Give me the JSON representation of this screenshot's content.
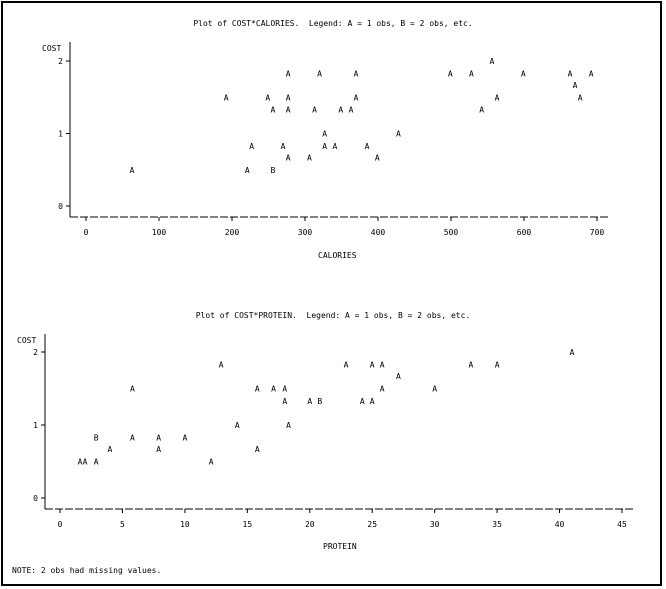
{
  "note": "NOTE: 2 obs had missing values.",
  "chart_data": [
    {
      "type": "scatter",
      "title": "Plot of COST*CALORIES.  Legend: A = 1 obs, B = 2 obs, etc.",
      "xlabel": "CALORIES",
      "ylabel": "COST",
      "xlim": [
        0,
        700
      ],
      "ylim": [
        0,
        2
      ],
      "xticks": [
        0,
        100,
        200,
        300,
        400,
        500,
        600,
        700
      ],
      "yticks": [
        0,
        1,
        2
      ],
      "points": [
        {
          "x": 63,
          "y": 0.5,
          "label": "A"
        },
        {
          "x": 192,
          "y": 1.5,
          "label": "A"
        },
        {
          "x": 221,
          "y": 0.5,
          "label": "A"
        },
        {
          "x": 227,
          "y": 0.83,
          "label": "A"
        },
        {
          "x": 249,
          "y": 1.5,
          "label": "A"
        },
        {
          "x": 256,
          "y": 1.33,
          "label": "A"
        },
        {
          "x": 256,
          "y": 0.5,
          "label": "B"
        },
        {
          "x": 270,
          "y": 0.83,
          "label": "A"
        },
        {
          "x": 277,
          "y": 1.83,
          "label": "A"
        },
        {
          "x": 277,
          "y": 1.5,
          "label": "A"
        },
        {
          "x": 277,
          "y": 1.33,
          "label": "A"
        },
        {
          "x": 277,
          "y": 0.67,
          "label": "A"
        },
        {
          "x": 306,
          "y": 0.67,
          "label": "A"
        },
        {
          "x": 313,
          "y": 1.33,
          "label": "A"
        },
        {
          "x": 320,
          "y": 1.83,
          "label": "A"
        },
        {
          "x": 327,
          "y": 1.0,
          "label": "A"
        },
        {
          "x": 327,
          "y": 0.83,
          "label": "A"
        },
        {
          "x": 341,
          "y": 0.83,
          "label": "A"
        },
        {
          "x": 349,
          "y": 1.33,
          "label": "A"
        },
        {
          "x": 363,
          "y": 1.33,
          "label": "A"
        },
        {
          "x": 370,
          "y": 1.83,
          "label": "A"
        },
        {
          "x": 370,
          "y": 1.5,
          "label": "A"
        },
        {
          "x": 385,
          "y": 0.83,
          "label": "A"
        },
        {
          "x": 399,
          "y": 0.67,
          "label": "A"
        },
        {
          "x": 428,
          "y": 1.0,
          "label": "A"
        },
        {
          "x": 499,
          "y": 1.83,
          "label": "A"
        },
        {
          "x": 528,
          "y": 1.83,
          "label": "A"
        },
        {
          "x": 542,
          "y": 1.33,
          "label": "A"
        },
        {
          "x": 556,
          "y": 2.0,
          "label": "A"
        },
        {
          "x": 563,
          "y": 1.5,
          "label": "A"
        },
        {
          "x": 599,
          "y": 1.83,
          "label": "A"
        },
        {
          "x": 663,
          "y": 1.83,
          "label": "A"
        },
        {
          "x": 670,
          "y": 1.67,
          "label": "A"
        },
        {
          "x": 677,
          "y": 1.5,
          "label": "A"
        },
        {
          "x": 692,
          "y": 1.83,
          "label": "A"
        }
      ]
    },
    {
      "type": "scatter",
      "title": "Plot of COST*PROTEIN.  Legend: A = 1 obs, B = 2 obs, etc.",
      "xlabel": "PROTEIN",
      "ylabel": "COST",
      "xlim": [
        0,
        45
      ],
      "ylim": [
        0,
        2
      ],
      "xticks": [
        0,
        5,
        10,
        15,
        20,
        25,
        30,
        35,
        40,
        45
      ],
      "yticks": [
        0,
        1,
        2
      ],
      "points": [
        {
          "x": 1.6,
          "y": 0.5,
          "label": "A"
        },
        {
          "x": 2.0,
          "y": 0.5,
          "label": "A"
        },
        {
          "x": 2.9,
          "y": 0.5,
          "label": "A"
        },
        {
          "x": 2.9,
          "y": 0.83,
          "label": "B"
        },
        {
          "x": 4.0,
          "y": 0.67,
          "label": "A"
        },
        {
          "x": 5.8,
          "y": 1.5,
          "label": "A"
        },
        {
          "x": 5.8,
          "y": 0.83,
          "label": "A"
        },
        {
          "x": 7.9,
          "y": 0.83,
          "label": "A"
        },
        {
          "x": 7.9,
          "y": 0.67,
          "label": "A"
        },
        {
          "x": 10.0,
          "y": 0.83,
          "label": "A"
        },
        {
          "x": 12.1,
          "y": 0.5,
          "label": "A"
        },
        {
          "x": 12.9,
          "y": 1.83,
          "label": "A"
        },
        {
          "x": 14.2,
          "y": 1.0,
          "label": "A"
        },
        {
          "x": 15.8,
          "y": 1.5,
          "label": "A"
        },
        {
          "x": 15.8,
          "y": 0.67,
          "label": "A"
        },
        {
          "x": 17.1,
          "y": 1.5,
          "label": "A"
        },
        {
          "x": 18.0,
          "y": 1.5,
          "label": "A"
        },
        {
          "x": 18.0,
          "y": 1.33,
          "label": "A"
        },
        {
          "x": 18.3,
          "y": 1.0,
          "label": "A"
        },
        {
          "x": 20.0,
          "y": 1.33,
          "label": "A"
        },
        {
          "x": 20.8,
          "y": 1.33,
          "label": "B"
        },
        {
          "x": 22.9,
          "y": 1.83,
          "label": "A"
        },
        {
          "x": 24.2,
          "y": 1.33,
          "label": "A"
        },
        {
          "x": 25.0,
          "y": 1.83,
          "label": "A"
        },
        {
          "x": 25.0,
          "y": 1.33,
          "label": "A"
        },
        {
          "x": 25.8,
          "y": 1.83,
          "label": "A"
        },
        {
          "x": 25.8,
          "y": 1.5,
          "label": "A"
        },
        {
          "x": 27.1,
          "y": 1.67,
          "label": "A"
        },
        {
          "x": 30.0,
          "y": 1.5,
          "label": "A"
        },
        {
          "x": 32.9,
          "y": 1.83,
          "label": "A"
        },
        {
          "x": 35.0,
          "y": 1.83,
          "label": "A"
        },
        {
          "x": 41.0,
          "y": 2.0,
          "label": "A"
        }
      ]
    }
  ]
}
